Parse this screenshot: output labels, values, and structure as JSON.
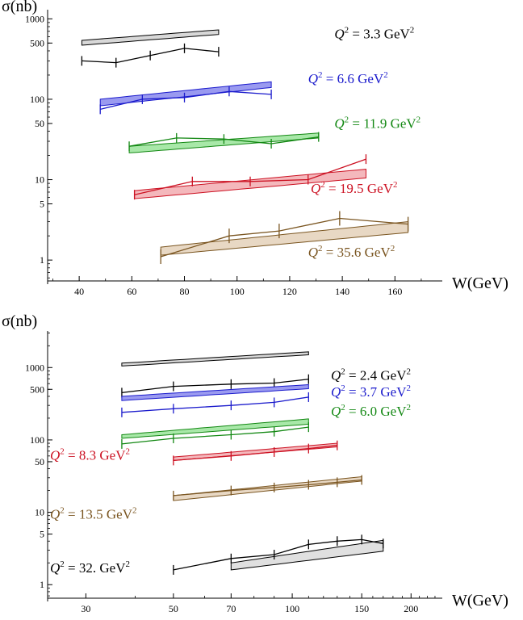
{
  "chart_data": [
    {
      "type": "line",
      "ylabel": "σ(nb)",
      "xlabel": "W(GeV)",
      "xscale": "linear",
      "yscale": "log",
      "xlim": [
        28,
        178
      ],
      "ylim": [
        0.55,
        1300
      ],
      "xticks": [
        40,
        60,
        80,
        100,
        120,
        140,
        160
      ],
      "yticks": [
        {
          "v": 1000,
          "label": "1000"
        },
        {
          "v": 500,
          "label": "500"
        },
        {
          "v": 100,
          "label": "100"
        },
        {
          "v": 50,
          "label": "50"
        },
        {
          "v": 10,
          "label": "10"
        },
        {
          "v": 5,
          "label": "5"
        },
        {
          "v": 1,
          "label": "1"
        }
      ],
      "series": [
        {
          "q2": "3.3",
          "label_prefix": "Q",
          "label_mid": " = 3.3 GeV",
          "color": "#000000",
          "band_color": "#d8d8d8",
          "label_pos": [
            137,
            570
          ],
          "points": {
            "x": [
              41,
              54,
              67,
              80,
              93
            ],
            "y": [
              300,
              285,
              350,
              430,
              390
            ]
          },
          "band": {
            "x": [
              41,
              93
            ],
            "low": [
              470,
              640
            ],
            "high": [
              540,
              730
            ]
          }
        },
        {
          "q2": "6.6",
          "label_prefix": "Q",
          "label_mid": " = 6.6 GeV",
          "color": "#1a1acc",
          "band_color": "#9a9af0",
          "label_pos": [
            127,
            158
          ],
          "points": {
            "x": [
              48,
              64,
              80,
              97,
              113
            ],
            "y": [
              75,
              100,
              105,
              125,
              115
            ]
          },
          "band": {
            "x": [
              48,
              113
            ],
            "low": [
              83,
              140
            ],
            "high": [
              100,
              165
            ]
          }
        },
        {
          "q2": "11.9",
          "label_prefix": "Q",
          "label_mid": " = 11.9 GeV",
          "color": "#138813",
          "band_color": "#a8e8a8",
          "label_pos": [
            137,
            44
          ],
          "points": {
            "x": [
              59,
              77,
              95,
              113,
              131
            ],
            "y": [
              26,
              33,
              32,
              28,
              34
            ]
          },
          "band": {
            "x": [
              59,
              131
            ],
            "low": [
              21.5,
              33
            ],
            "high": [
              26,
              38
            ]
          }
        },
        {
          "q2": "19.5",
          "label_prefix": "Q",
          "label_mid": " = 19.5 GeV",
          "color": "#cc1122",
          "band_color": "#f4b8bc",
          "label_pos": [
            128,
            6.8
          ],
          "points": {
            "x": [
              61,
              83,
              105,
              127,
              149
            ],
            "y": [
              6.5,
              9.5,
              9.5,
              10,
              18
            ]
          },
          "band": {
            "x": [
              61,
              149
            ],
            "low": [
              5.8,
              10.5
            ],
            "high": [
              7.3,
              13.5
            ]
          }
        },
        {
          "q2": "35.6",
          "label_prefix": "Q",
          "label_mid": " = 35.6 GeV",
          "color": "#7a5520",
          "band_color": "#e8d8c4",
          "label_pos": [
            127,
            1.1
          ],
          "points": {
            "x": [
              71,
              97,
              116,
              139,
              165
            ],
            "y": [
              1.1,
              2.0,
              2.3,
              3.3,
              2.8
            ]
          },
          "band": {
            "x": [
              71,
              165
            ],
            "low": [
              1.15,
              2.2
            ],
            "high": [
              1.45,
              3.0
            ]
          }
        }
      ]
    },
    {
      "type": "line",
      "ylabel": "σ(nb)",
      "xlabel": "W(GeV)",
      "xscale": "log",
      "yscale": "log",
      "xlim": [
        24,
        240
      ],
      "ylim": [
        0.65,
        3200
      ],
      "xticks": [
        30,
        50,
        70,
        100,
        150,
        200
      ],
      "yticks": [
        {
          "v": 1000,
          "label": "1000"
        },
        {
          "v": 500,
          "label": "500"
        },
        {
          "v": 100,
          "label": "100"
        },
        {
          "v": 50,
          "label": "50"
        },
        {
          "v": 10,
          "label": "10"
        },
        {
          "v": 5,
          "label": "5"
        },
        {
          "v": 1,
          "label": "1"
        }
      ],
      "series": [
        {
          "q2": "2.4",
          "label_prefix": "Q",
          "label_mid": " = 2.4 GeV",
          "color": "#000000",
          "band_color": "#d8d8d8",
          "label_pos": [
            133,
            680
          ],
          "points": {
            "x": [
              37,
              50,
              70,
              90,
              110
            ],
            "y": [
              450,
              550,
              590,
              610,
              690
            ]
          },
          "band": {
            "x": [
              37,
              110
            ],
            "low": [
              1050,
              1500
            ],
            "high": [
              1150,
              1650
            ]
          }
        },
        {
          "q2": "3.7",
          "label_prefix": "Q",
          "label_mid": " = 3.7 GeV",
          "color": "#1a1acc",
          "band_color": "#9a9af0",
          "label_pos": [
            133,
            400
          ],
          "points": {
            "x": [
              37,
              50,
              70,
              90,
              110
            ],
            "y": [
              240,
              270,
              300,
              330,
              390
            ]
          },
          "band": {
            "x": [
              37,
              110
            ],
            "low": [
              350,
              510
            ],
            "high": [
              400,
              580
            ]
          }
        },
        {
          "q2": "6.0",
          "label_prefix": "Q",
          "label_mid": " = 6.0 GeV",
          "color": "#138813",
          "band_color": "#a8e8a8",
          "label_pos": [
            133,
            215
          ],
          "points": {
            "x": [
              37,
              50,
              70,
              90,
              110
            ],
            "y": [
              88,
              105,
              118,
              130,
              150
            ]
          },
          "band": {
            "x": [
              37,
              110
            ],
            "low": [
              105,
              165
            ],
            "high": [
              118,
              195
            ]
          }
        },
        {
          "q2": "8.3",
          "label_prefix": "Q",
          "label_mid": " = 8.3 GeV",
          "color": "#cc1122",
          "band_color": "#f4b8bc",
          "label_pos": [
            25,
            53
          ],
          "points": {
            "x": [
              50,
              70,
              90,
              110,
              130
            ],
            "y": [
              52,
              60,
              68,
              76,
              84
            ]
          },
          "band": {
            "x": [
              50,
              130
            ],
            "low": [
              52,
              80
            ],
            "high": [
              58,
              90
            ]
          }
        },
        {
          "q2": "13.5",
          "label_prefix": "Q",
          "label_mid": " = 13.5 GeV",
          "color": "#7a5520",
          "band_color": "#e8d8c4",
          "label_pos": [
            25,
            8.2
          ],
          "points": {
            "x": [
              50,
              70,
              90,
              110,
              130,
              150
            ],
            "y": [
              17,
              20,
              22,
              24,
              26,
              28
            ]
          },
          "band": {
            "x": [
              50,
              150
            ],
            "low": [
              14.5,
              27
            ],
            "high": [
              17,
              31
            ]
          }
        },
        {
          "q2": "32.",
          "label_prefix": "Q",
          "label_mid": " = 32. GeV",
          "color": "#000000",
          "band_color": "#e0e0e0",
          "label_pos": [
            25,
            1.48
          ],
          "points": {
            "x": [
              50,
              70,
              90,
              110,
              130,
              150,
              170
            ],
            "y": [
              1.6,
              2.3,
              2.6,
              3.6,
              4.0,
              4.2,
              3.7
            ]
          },
          "band": {
            "x": [
              70,
              170
            ],
            "low": [
              1.6,
              2.9
            ],
            "high": [
              2.0,
              4.1
            ]
          }
        }
      ]
    }
  ]
}
